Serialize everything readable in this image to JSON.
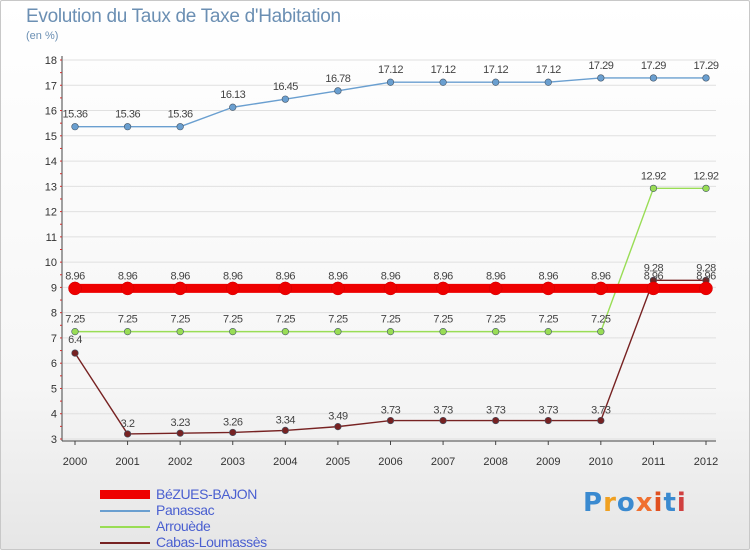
{
  "colors": {
    "BéZUES-BAJON": "#ee0000",
    "Panassac": "#6a9fd0",
    "Arrouède": "#99dd55",
    "Cabas-Loumassès": "#772222",
    "grid": "#e0e0e0",
    "axis_text": "#333333"
  },
  "logo": {
    "letters": [
      "P",
      "r",
      "o",
      "x",
      "i",
      "t",
      "i"
    ],
    "colors": [
      "#3a8ad0",
      "#f0a020",
      "#3a8ad0",
      "#f07030",
      "#e05020",
      "#3a8ad0",
      "#d04040"
    ]
  },
  "chart_data": {
    "type": "line",
    "title": "Evolution du Taux de Taxe d'Habitation",
    "subtitle": "(en %)",
    "xlabel": "",
    "ylabel": "",
    "categories": [
      "2000",
      "2001",
      "2002",
      "2003",
      "2004",
      "2005",
      "2006",
      "2007",
      "2008",
      "2009",
      "2010",
      "2011",
      "2012"
    ],
    "ylim": [
      3,
      18
    ],
    "yticks": [
      "3",
      "4",
      "5",
      "6",
      "7",
      "8",
      "9",
      "10",
      "11",
      "12",
      "13",
      "14",
      "15",
      "16",
      "17",
      "18"
    ],
    "grid": "horizontal",
    "legend_position": "bottom-left",
    "series": [
      {
        "name": "BéZUES-BAJON",
        "values": [
          8.96,
          8.96,
          8.96,
          8.96,
          8.96,
          8.96,
          8.96,
          8.96,
          8.96,
          8.96,
          8.96,
          8.96,
          8.96
        ],
        "labels": [
          "8.96",
          "8.96",
          "8.96",
          "8.96",
          "8.96",
          "8.96",
          "8.96",
          "8.96",
          "8.96",
          "8.96",
          "8.96",
          "8.96",
          "8.96"
        ]
      },
      {
        "name": "Panassac",
        "values": [
          15.36,
          15.36,
          15.36,
          16.13,
          16.45,
          16.78,
          17.12,
          17.12,
          17.12,
          17.12,
          17.29,
          17.29,
          17.29
        ],
        "labels": [
          "15.36",
          "15.36",
          "15.36",
          "16.13",
          "16.45",
          "16.78",
          "17.12",
          "17.12",
          "17.12",
          "17.12",
          "17.29",
          "17.29",
          "17.29"
        ]
      },
      {
        "name": "Arrouède",
        "values": [
          7.25,
          7.25,
          7.25,
          7.25,
          7.25,
          7.25,
          7.25,
          7.25,
          7.25,
          7.25,
          7.25,
          12.92,
          12.92
        ],
        "labels": [
          "7.25",
          "7.25",
          "7.25",
          "7.25",
          "7.25",
          "7.25",
          "7.25",
          "7.25",
          "7.25",
          "7.25",
          "7.25",
          "12.92",
          "12.92"
        ]
      },
      {
        "name": "Cabas-Loumassès",
        "values": [
          6.4,
          3.2,
          3.23,
          3.26,
          3.34,
          3.49,
          3.73,
          3.73,
          3.73,
          3.73,
          3.73,
          9.28,
          9.28
        ],
        "labels": [
          "6.4",
          "3.2",
          "3.23",
          "3.26",
          "3.34",
          "3.49",
          "3.73",
          "3.73",
          "3.73",
          "3.73",
          "3.73",
          "9.28",
          "9.28"
        ]
      }
    ]
  }
}
